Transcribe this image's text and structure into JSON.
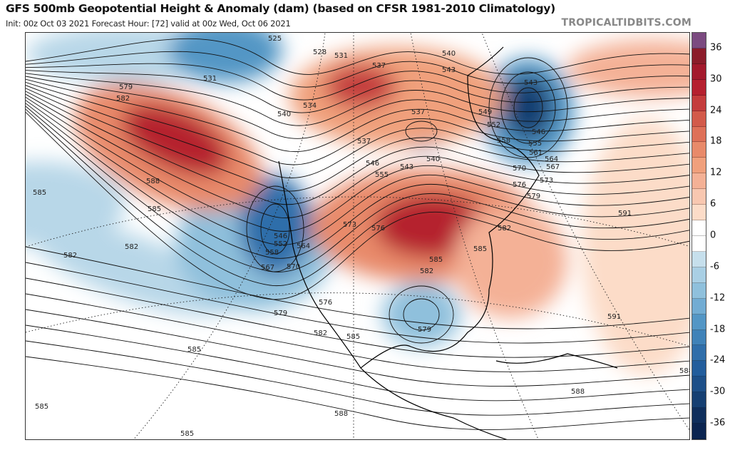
{
  "header": {
    "title": "GFS 500mb Geopotential Height & Anomaly (dam) (based on CFSR 1981-2010 Climatology)",
    "subtitle": "Init: 00z Oct 03 2021   Forecast Hour: [72]   valid at 00z Wed, Oct 06 2021",
    "brand": "TROPICALTIDBITS.COM"
  },
  "colorbar": {
    "labels": [
      "36",
      "30",
      "24",
      "18",
      "12",
      "6",
      "0",
      "-6",
      "-12",
      "-18",
      "-24",
      "-30",
      "-36"
    ],
    "colors": [
      "#7b4a80",
      "#8b1c2a",
      "#a3192c",
      "#b5202f",
      "#c43c3c",
      "#d25a4a",
      "#de7058",
      "#e88a6a",
      "#f0a07c",
      "#f4b196",
      "#f8c7b0",
      "#fcdcc8",
      "#ffffff",
      "#ffffff",
      "#c6dfec",
      "#a9cfe4",
      "#8fc0dc",
      "#72acd3",
      "#5396c5",
      "#3f82b8",
      "#2f6eaa",
      "#225d9c",
      "#1d4f88",
      "#153f72",
      "#0e2e5c",
      "#0a2450"
    ]
  },
  "map": {
    "anomaly_colors": {
      "positive_strong": "#b5202f",
      "positive": "#e88a6a",
      "positive_weak": "#fcdcc8",
      "negative_weak": "#b8d7e8",
      "negative": "#5396c5",
      "negative_strong": "#153f72"
    },
    "contour_labels": [
      "525",
      "528",
      "531",
      "537",
      "540",
      "543",
      "543",
      "531",
      "579",
      "582",
      "540",
      "534",
      "537",
      "549",
      "552",
      "546",
      "555",
      "561",
      "558",
      "564",
      "567",
      "537",
      "540",
      "543",
      "546",
      "555",
      "570",
      "573",
      "576",
      "579",
      "588",
      "585",
      "585",
      "591",
      "582",
      "582",
      "546",
      "552",
      "558",
      "564",
      "567",
      "570",
      "573",
      "576",
      "582",
      "585",
      "585",
      "582",
      "579",
      "576",
      "582",
      "585",
      "579",
      "591",
      "585",
      "585",
      "588",
      "585",
      "588",
      "588"
    ]
  }
}
